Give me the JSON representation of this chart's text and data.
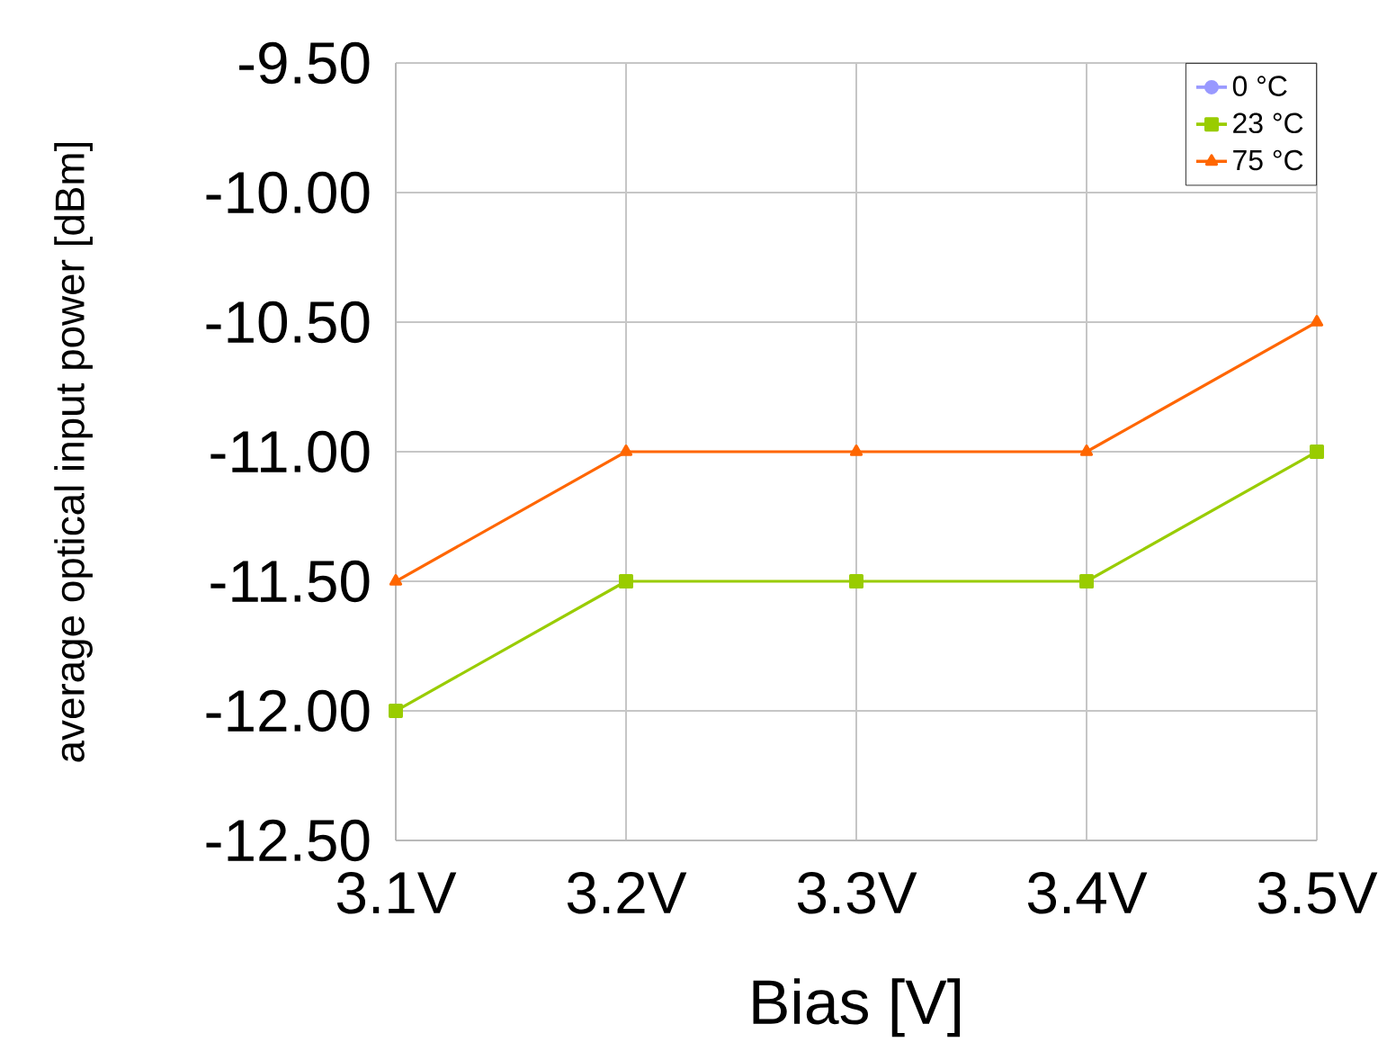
{
  "chart_data": {
    "type": "line",
    "xlabel": "Bias [V]",
    "ylabel": "average optical input power [dBm]",
    "categories": [
      "3.1V",
      "3.2V",
      "3.3V",
      "3.4V",
      "3.5V"
    ],
    "series": [
      {
        "name": "0 °C",
        "color": "#9999ff",
        "marker": "circle",
        "values": [
          null,
          null,
          null,
          null,
          null
        ]
      },
      {
        "name": "23 °C",
        "color": "#99cc00",
        "marker": "square",
        "values": [
          -12.0,
          -11.5,
          -11.5,
          -11.5,
          -11.0
        ]
      },
      {
        "name": "75 °C",
        "color": "#ff6600",
        "marker": "triangle",
        "values": [
          -11.5,
          -11.0,
          -11.0,
          -11.0,
          -10.5
        ]
      }
    ],
    "ylim": [
      -12.5,
      -9.5
    ],
    "yticks": [
      {
        "value": -12.5,
        "label": "-12.50"
      },
      {
        "value": -12.0,
        "label": "-12.00"
      },
      {
        "value": -11.5,
        "label": "-11.50"
      },
      {
        "value": -11.0,
        "label": "-11.00"
      },
      {
        "value": -10.5,
        "label": "-10.50"
      },
      {
        "value": -10.0,
        "label": "-10.00"
      },
      {
        "value": -9.5,
        "label": "-9.50"
      }
    ],
    "grid": true,
    "legend": "top right",
    "line_style": "solid"
  }
}
